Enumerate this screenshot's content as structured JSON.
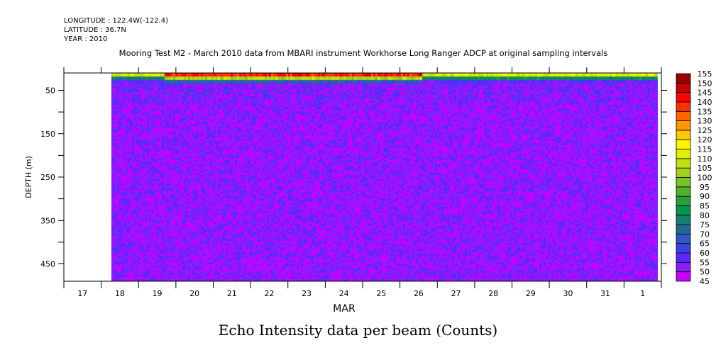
{
  "header": {
    "longitude": "LONGITUDE : 122.4W(-122.4)",
    "latitude": "LATITUDE : 36.7N",
    "year": "YEAR : 2010"
  },
  "chart_data": {
    "type": "heatmap",
    "title": "Mooring Test M2 - March 2010 data from MBARI instrument Workhorse Long Ranger ADCP at original sampling intervals",
    "bottom_title": "Echo Intensity data per beam (Counts)",
    "xlabel": "MAR",
    "ylabel": "DEPTH (m)",
    "x_tick_labels": [
      "17",
      "18",
      "19",
      "20",
      "21",
      "22",
      "23",
      "24",
      "25",
      "26",
      "27",
      "28",
      "29",
      "30",
      "31",
      "1"
    ],
    "xlim_days": [
      17,
      33
    ],
    "data_start_day": 18.25,
    "y_tick_labels": [
      "50",
      "150",
      "250",
      "350",
      "450"
    ],
    "y_ticks": [
      50,
      100,
      150,
      200,
      250,
      300,
      350,
      400,
      450
    ],
    "ylim": [
      10,
      490
    ],
    "colorbar_levels": [
      45,
      50,
      55,
      60,
      65,
      70,
      75,
      80,
      85,
      90,
      95,
      100,
      105,
      110,
      115,
      120,
      125,
      130,
      135,
      140,
      145,
      150,
      155
    ],
    "colorbar_labels": [
      "45",
      "50",
      "55",
      "60",
      "65",
      "70",
      "75",
      "80",
      "85",
      "90",
      "95",
      "100",
      "105",
      "110",
      "115",
      "120",
      "125",
      "130",
      "135",
      "140",
      "145",
      "150",
      "155"
    ],
    "colorbar_colors": [
      "#c800ff",
      "#8c1cff",
      "#5a28ff",
      "#3c40e6",
      "#3058c0",
      "#206a96",
      "#148070",
      "#009650",
      "#28a040",
      "#50b030",
      "#78c428",
      "#a0d020",
      "#c0e010",
      "#e0f000",
      "#fff500",
      "#ffc800",
      "#ff9600",
      "#ff6400",
      "#ff3200",
      "#ff0000",
      "#c80000",
      "#960000"
    ],
    "segments": [
      {
        "start_day": 18.25,
        "end_day": 19.7,
        "surface_layers": [
          110,
          75,
          58
        ],
        "background": [
          45,
          60
        ]
      },
      {
        "start_day": 19.7,
        "end_day": 26.6,
        "surface_layers": [
          140,
          105,
          68
        ],
        "background": [
          45,
          60
        ]
      },
      {
        "start_day": 26.6,
        "end_day": 32.9,
        "surface_layers": [
          112,
          80,
          58
        ],
        "background": [
          45,
          60
        ]
      }
    ]
  }
}
